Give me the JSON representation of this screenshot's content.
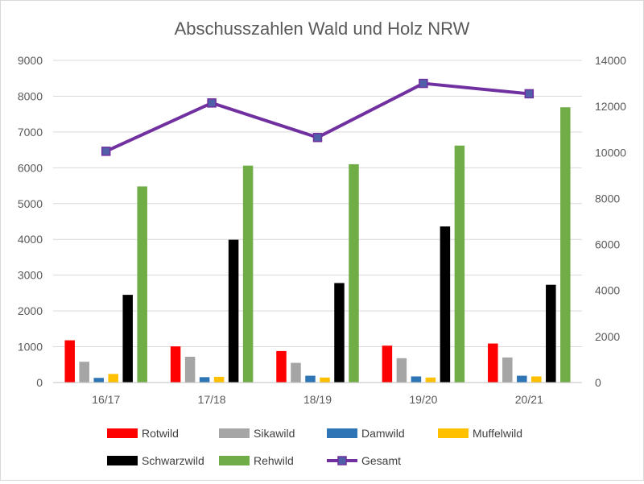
{
  "chart_data": {
    "type": "bar",
    "title": "Abschusszahlen Wald und Holz NRW",
    "categories": [
      "16/17",
      "17/18",
      "18/19",
      "19/20",
      "20/21"
    ],
    "y_left": {
      "ylim": [
        0,
        9000
      ],
      "ticks": [
        "0",
        "1000",
        "2000",
        "3000",
        "4000",
        "5000",
        "6000",
        "7000",
        "8000",
        "9000"
      ]
    },
    "y_right": {
      "ylim": [
        0,
        14000
      ],
      "ticks": [
        "0",
        "2000",
        "4000",
        "6000",
        "8000",
        "10000",
        "12000",
        "14000"
      ]
    },
    "grid": true,
    "legend_position": "bottom",
    "series": [
      {
        "name": "Rotwild",
        "type": "bar",
        "axis": "left",
        "color": "#ff0000",
        "values": [
          1180,
          1010,
          880,
          1030,
          1090
        ]
      },
      {
        "name": "Sikawild",
        "type": "bar",
        "axis": "left",
        "color": "#a5a5a5",
        "values": [
          580,
          720,
          550,
          680,
          700
        ]
      },
      {
        "name": "Damwild",
        "type": "bar",
        "axis": "left",
        "color": "#2e75b6",
        "values": [
          130,
          150,
          190,
          170,
          190
        ]
      },
      {
        "name": "Muffelwild",
        "type": "bar",
        "axis": "left",
        "color": "#ffc000",
        "values": [
          240,
          160,
          140,
          140,
          170
        ]
      },
      {
        "name": "Schwarzwild",
        "type": "bar",
        "axis": "left",
        "color": "#000000",
        "values": [
          2450,
          3990,
          2780,
          4360,
          2730
        ]
      },
      {
        "name": "Rehwild",
        "type": "bar",
        "axis": "left",
        "color": "#70ad47",
        "values": [
          5480,
          6060,
          6100,
          6620,
          7690
        ]
      },
      {
        "name": "Gesamt",
        "type": "line",
        "axis": "right",
        "color": "#7030a0",
        "marker_color": "#4f5fa8",
        "values": [
          10050,
          12150,
          10650,
          13000,
          12550
        ]
      }
    ]
  }
}
